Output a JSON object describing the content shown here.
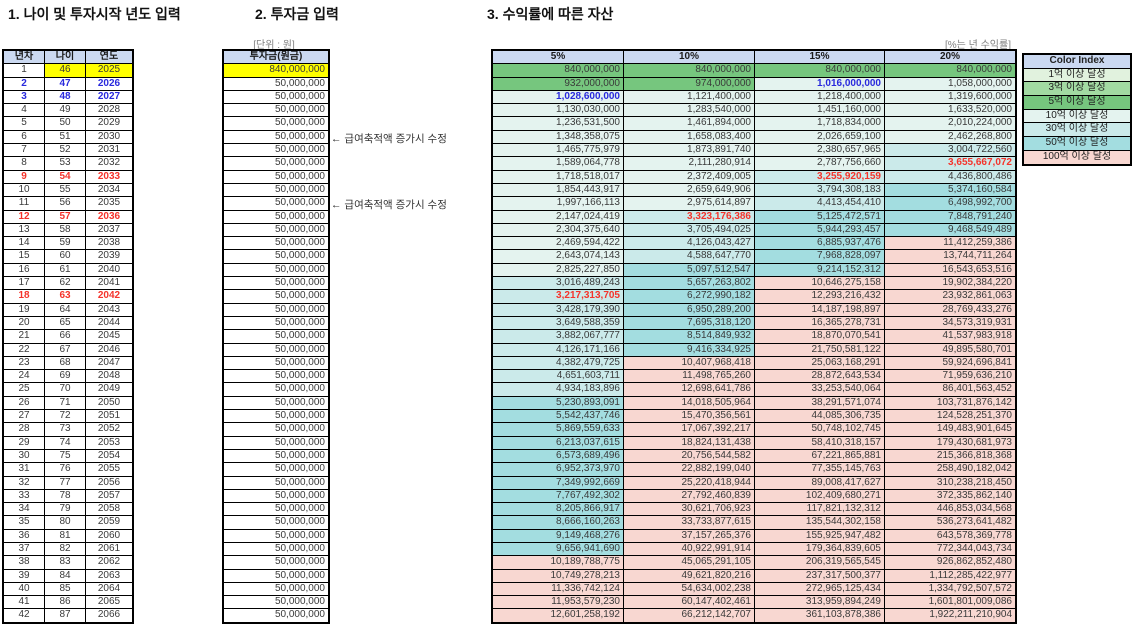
{
  "sections": {
    "s1_title": "1. 나이 및 투자시작 년도 입력",
    "s2_title": "2. 투자금 입력",
    "s3_title": "3. 수익률에 따른 자산"
  },
  "labels": {
    "unit_won": "[단위 : 원]",
    "unit_return": "[%는 년 수익률]",
    "salary_note": "← 급여축적액 증가시 수정"
  },
  "age_table": {
    "headers": [
      "년차",
      "나이",
      "연도"
    ],
    "start": {
      "year_no": 1,
      "age": 46,
      "year": 2025
    },
    "row_count": 42,
    "yellow_row": 1,
    "blue_rows": [
      2,
      3
    ],
    "red_rows": [
      9,
      12,
      18
    ]
  },
  "investment_table": {
    "header": "투자금(원금)",
    "first_value": 840000000,
    "recurring_value": 50000000,
    "row_count": 42,
    "yellow_row": 1
  },
  "asset_table": {
    "headers": [
      "5%",
      "10%",
      "15%",
      "20%"
    ],
    "red_header_index": 2,
    "red_cells": [
      [
        8,
        3
      ],
      [
        9,
        2
      ],
      [
        12,
        1
      ],
      [
        18,
        0
      ]
    ],
    "blue_cells": [
      [
        2,
        2
      ],
      [
        3,
        0
      ]
    ],
    "rows": [
      [
        840000000,
        840000000,
        840000000,
        840000000
      ],
      [
        932000000,
        974000000,
        1016000000,
        1058000000
      ],
      [
        1028600000,
        1121400000,
        1218400000,
        1319600000
      ],
      [
        1130030000,
        1283540000,
        1451160000,
        1633520000
      ],
      [
        1236531500,
        1461894000,
        1718834000,
        2010224000
      ],
      [
        1348358075,
        1658083400,
        2026659100,
        2462268800
      ],
      [
        1465775979,
        1873891740,
        2380657965,
        3004722560
      ],
      [
        1589064778,
        2111280914,
        2787756660,
        3655667072
      ],
      [
        1718518017,
        2372409005,
        3255920159,
        4436800486
      ],
      [
        1854443917,
        2659649906,
        3794308183,
        5374160584
      ],
      [
        1997166113,
        2975614897,
        4413454410,
        6498992700
      ],
      [
        2147024419,
        3323176386,
        5125472571,
        7848791240
      ],
      [
        2304375640,
        3705494025,
        5944293457,
        9468549489
      ],
      [
        2469594422,
        4126043427,
        6885937476,
        11412259386
      ],
      [
        2643074143,
        4588647770,
        7968828097,
        13744711264
      ],
      [
        2825227850,
        5097512547,
        9214152312,
        16543653516
      ],
      [
        3016489243,
        5657263802,
        10646275158,
        19902384220
      ],
      [
        3217313705,
        6272990182,
        12293216432,
        23932861063
      ],
      [
        3428179390,
        6950289200,
        14187198897,
        28769433276
      ],
      [
        3649588359,
        7695318120,
        16365278731,
        34573319931
      ],
      [
        3882067777,
        8514849932,
        18870070541,
        41537983918
      ],
      [
        4126171166,
        9416334925,
        21750581122,
        49895580701
      ],
      [
        4382479725,
        10407968418,
        25063168291,
        59924696841
      ],
      [
        4651603711,
        11498765260,
        28872643534,
        71959636210
      ],
      [
        4934183896,
        12698641786,
        33253540064,
        86401563452
      ],
      [
        5230893091,
        14018505964,
        38291571074,
        103731876142
      ],
      [
        5542437746,
        15470356561,
        44085306735,
        124528251370
      ],
      [
        5869559633,
        17067392217,
        50748102745,
        149483901645
      ],
      [
        6213037615,
        18824131438,
        58410318157,
        179430681973
      ],
      [
        6573689496,
        20756544582,
        67221865881,
        215366818368
      ],
      [
        6952373970,
        22882199040,
        77355145763,
        258490182042
      ],
      [
        7349992669,
        25220418944,
        89008417627,
        310238218450
      ],
      [
        7767492302,
        27792460839,
        102409680271,
        372335862140
      ],
      [
        8205866917,
        30621706923,
        117821132312,
        446853034568
      ],
      [
        8666160263,
        33733877615,
        135544302158,
        536273641482
      ],
      [
        9149468276,
        37157265376,
        155925947482,
        643578369778
      ],
      [
        9656941690,
        40922991914,
        179364839605,
        772344043734
      ],
      [
        10189788775,
        45065291105,
        206319565545,
        926862852480
      ],
      [
        10749278213,
        49621820216,
        237317500377,
        1112285422977
      ],
      [
        11336742124,
        54634002238,
        272965125434,
        1334792507572
      ],
      [
        11953579230,
        60147402461,
        313959894249,
        1601801009086
      ],
      [
        12601258192,
        66212142707,
        361103878386,
        1922211210904
      ]
    ]
  },
  "color_index": {
    "title": "Color Index",
    "entries": [
      {
        "label": "1억 이상 달성",
        "threshold": 100000000,
        "color": "#E1F2DE"
      },
      {
        "label": "3억 이상 달성",
        "threshold": 300000000,
        "color": "#A2DAA2"
      },
      {
        "label": "5억 이상 달성",
        "threshold": 500000000,
        "color": "#76C67E"
      },
      {
        "label": "10억 이상 달성",
        "threshold": 1000000000,
        "color": "#E4F3EF"
      },
      {
        "label": "30억 이상 달성",
        "threshold": 3000000000,
        "color": "#CBEAEA"
      },
      {
        "label": "50억 이상 달성",
        "threshold": 5000000000,
        "color": "#A3DDE0"
      },
      {
        "label": "100억 이상 달성",
        "threshold": 10000000000,
        "color": "#F8D7D1"
      }
    ]
  },
  "palette": {
    "header_bg": "#CBD9F1",
    "yellow": "#FFFF00",
    "red_text": "#F5332B",
    "blue_text": "#2929DD",
    "border": "#000000",
    "text": "#3A3A3A",
    "muted_text": "#7F7F7F"
  }
}
